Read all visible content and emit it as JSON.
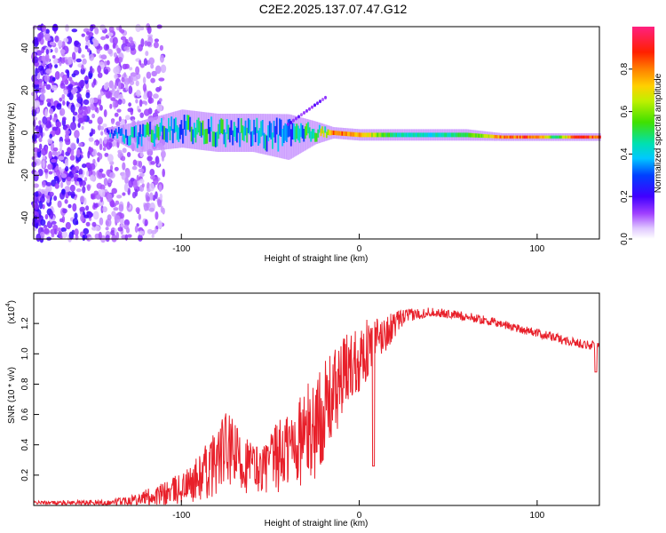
{
  "title": "C2E2.2025.137.07.47.G12",
  "colors": {
    "snr_line": "#e8202a",
    "axis": "#000000",
    "frame": "#000000"
  },
  "chart_data": [
    {
      "type": "heatmap",
      "title": "C2E2.2025.137.07.47.G12",
      "xlabel": "Height of straight line (km)",
      "ylabel": "Frequency (Hz)",
      "xlim": [
        -183,
        135
      ],
      "ylim": [
        -50,
        50
      ],
      "x_ticks": [
        -100,
        0,
        100
      ],
      "x_tick_labels": [
        "-100",
        "0",
        "100"
      ],
      "y_ticks": [
        -40,
        -20,
        0,
        20,
        40
      ],
      "y_tick_labels": [
        "-40",
        "-20",
        "0",
        "20",
        "40"
      ],
      "colorbar": {
        "label": "Normalized spectral amplitude",
        "range": [
          0.0,
          1.0
        ],
        "ticks": [
          0.0,
          0.2,
          0.4,
          0.6,
          0.8
        ],
        "tick_labels": [
          "0.0",
          "0.2",
          "0.4",
          "0.6",
          "0.8"
        ],
        "colormap": "rainbow (white-purple-blue-cyan-green-yellow-orange-red-pink)"
      },
      "ridge": [
        {
          "x": -140,
          "freq": 0,
          "width_hz": 3,
          "amp": 0.35
        },
        {
          "x": -125,
          "freq": -2,
          "width_hz": 8,
          "amp": 0.4
        },
        {
          "x": -100,
          "freq": 2,
          "width_hz": 10,
          "amp": 0.45
        },
        {
          "x": -80,
          "freq": 0,
          "width_hz": 10,
          "amp": 0.42
        },
        {
          "x": -60,
          "freq": 0,
          "width_hz": 10,
          "amp": 0.4
        },
        {
          "x": -40,
          "freq": -2,
          "width_hz": 12,
          "amp": 0.38
        },
        {
          "x": -25,
          "freq": 0,
          "width_hz": 6,
          "amp": 0.55
        },
        {
          "x": -15,
          "freq": 0,
          "width_hz": 3,
          "amp": 0.85
        },
        {
          "x": 0,
          "freq": -1,
          "width_hz": 3,
          "amp": 0.75
        },
        {
          "x": 20,
          "freq": -1,
          "width_hz": 3,
          "amp": 0.45
        },
        {
          "x": 40,
          "freq": -1,
          "width_hz": 3,
          "amp": 0.42
        },
        {
          "x": 60,
          "freq": -1,
          "width_hz": 3,
          "amp": 0.5
        },
        {
          "x": 80,
          "freq": -2,
          "width_hz": 2,
          "amp": 0.8
        },
        {
          "x": 100,
          "freq": -2,
          "width_hz": 2,
          "amp": 0.85
        },
        {
          "x": 110,
          "freq": -2,
          "width_hz": 2,
          "amp": 0.45
        },
        {
          "x": 120,
          "freq": -2,
          "width_hz": 2,
          "amp": 0.85
        },
        {
          "x": 135,
          "freq": -2,
          "width_hz": 2,
          "amp": 0.85
        }
      ],
      "noise_region_x": [
        -183,
        -120
      ]
    },
    {
      "type": "line",
      "xlabel": "Height of straight line (km)",
      "ylabel": "SNR (10 * v/v)",
      "y_multiplier_label": "(x10",
      "y_multiplier_exp": "4",
      "y_multiplier_close": ")",
      "xlim": [
        -183,
        135
      ],
      "ylim": [
        0,
        1.4
      ],
      "x_ticks": [
        -100,
        0,
        100
      ],
      "x_tick_labels": [
        "-100",
        "0",
        "100"
      ],
      "y_ticks": [
        0.2,
        0.4,
        0.6,
        0.8,
        1.0,
        1.2
      ],
      "y_tick_labels": [
        "0.2",
        "0.4",
        "0.6",
        "0.8",
        "1.0",
        "1.2"
      ],
      "series": [
        {
          "name": "SNR",
          "envelope": [
            {
              "x": -183,
              "y": 0.02,
              "spread": 0.01
            },
            {
              "x": -140,
              "y": 0.02,
              "spread": 0.02
            },
            {
              "x": -125,
              "y": 0.05,
              "spread": 0.04
            },
            {
              "x": -110,
              "y": 0.08,
              "spread": 0.08
            },
            {
              "x": -95,
              "y": 0.15,
              "spread": 0.12
            },
            {
              "x": -85,
              "y": 0.25,
              "spread": 0.2
            },
            {
              "x": -75,
              "y": 0.4,
              "spread": 0.25
            },
            {
              "x": -65,
              "y": 0.3,
              "spread": 0.2
            },
            {
              "x": -55,
              "y": 0.25,
              "spread": 0.15
            },
            {
              "x": -45,
              "y": 0.35,
              "spread": 0.25
            },
            {
              "x": -35,
              "y": 0.45,
              "spread": 0.3
            },
            {
              "x": -25,
              "y": 0.55,
              "spread": 0.35
            },
            {
              "x": -15,
              "y": 0.75,
              "spread": 0.3
            },
            {
              "x": -5,
              "y": 0.95,
              "spread": 0.25
            },
            {
              "x": 5,
              "y": 1.05,
              "spread": 0.2
            },
            {
              "x": 15,
              "y": 1.15,
              "spread": 0.12
            },
            {
              "x": 25,
              "y": 1.25,
              "spread": 0.05
            },
            {
              "x": 40,
              "y": 1.28,
              "spread": 0.03
            },
            {
              "x": 60,
              "y": 1.25,
              "spread": 0.03
            },
            {
              "x": 80,
              "y": 1.2,
              "spread": 0.03
            },
            {
              "x": 100,
              "y": 1.14,
              "spread": 0.03
            },
            {
              "x": 120,
              "y": 1.08,
              "spread": 0.03
            },
            {
              "x": 135,
              "y": 1.05,
              "spread": 0.03
            }
          ],
          "dips": [
            {
              "x": 8,
              "y": 0.26
            },
            {
              "x": 133,
              "y": 0.88
            }
          ]
        }
      ]
    }
  ]
}
